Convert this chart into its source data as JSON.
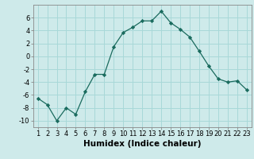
{
  "x": [
    1,
    2,
    3,
    4,
    5,
    6,
    7,
    8,
    9,
    10,
    11,
    12,
    13,
    14,
    15,
    16,
    17,
    18,
    19,
    20,
    21,
    22,
    23
  ],
  "y": [
    -6.5,
    -7.5,
    -10,
    -8,
    -9,
    -5.5,
    -2.8,
    -2.8,
    1.5,
    3.7,
    4.5,
    5.5,
    5.5,
    7,
    5.2,
    4.2,
    3,
    0.8,
    -1.5,
    -3.5,
    -4,
    -3.8,
    -5.2
  ],
  "line_color": "#1a6b5e",
  "marker": "D",
  "marker_size": 2.2,
  "bg_color": "#ceeaea",
  "grid_color": "#a8d8d8",
  "xlabel": "Humidex (Indice chaleur)",
  "ylim": [
    -11,
    8
  ],
  "xlim": [
    0.5,
    23.5
  ],
  "yticks": [
    -10,
    -8,
    -6,
    -4,
    -2,
    0,
    2,
    4,
    6
  ],
  "xticks": [
    1,
    2,
    3,
    4,
    5,
    6,
    7,
    8,
    9,
    10,
    11,
    12,
    13,
    14,
    15,
    16,
    17,
    18,
    19,
    20,
    21,
    22,
    23
  ],
  "tick_fontsize": 6,
  "xlabel_fontsize": 7.5
}
